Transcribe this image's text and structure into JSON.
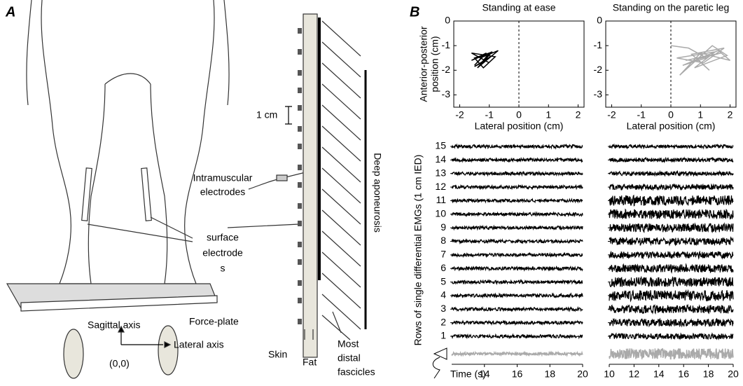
{
  "panel_a": {
    "label": "A",
    "scale": "1 cm",
    "intramuscular": [
      "Intramuscular",
      "electrodes"
    ],
    "surface": [
      "surface",
      "electrode",
      "s"
    ],
    "aponeurosis": "Deep aponeurosis",
    "force_plate": "Force-plate",
    "sagittal": "Sagittal axis",
    "lateral": "Lateral axis",
    "origin": "(0,0)",
    "skin": "Skin",
    "fat": "Fat",
    "fascicles": [
      "Most",
      "distal",
      "fascicles"
    ]
  },
  "panel_b_label": "B",
  "chart_data": [
    {
      "type": "line",
      "title": "Standing at ease",
      "xlabel": "Lateral position (cm)",
      "ylabel": [
        "Anterior-posterior",
        "position (cm)"
      ],
      "color": "#000000",
      "xlim": [
        -2.2,
        2.2
      ],
      "ylim": [
        -3.5,
        0
      ],
      "xticks": [
        -2,
        -1,
        0,
        1,
        2
      ],
      "yticks": [
        0,
        -1,
        -2,
        -3
      ],
      "x": [
        -1.2,
        -1.5,
        -1.1,
        -1.6,
        -0.9,
        -1.4,
        -0.7,
        -1.3,
        -1.0,
        -1.6,
        -0.8,
        -1.2,
        -1.5,
        -1.0,
        -1.3,
        -0.9,
        -1.5,
        -1.1
      ],
      "values": [
        -1.4,
        -1.8,
        -1.3,
        -1.6,
        -1.25,
        -1.9,
        -1.2,
        -1.5,
        -1.7,
        -1.3,
        -1.45,
        -1.9,
        -1.5,
        -1.3,
        -1.75,
        -1.4,
        -1.85,
        -1.6
      ]
    },
    {
      "type": "line",
      "title": "Standing on the paretic leg",
      "xlabel": "Lateral position (cm)",
      "color": "#aaaaaa",
      "xlim": [
        -2.2,
        2.2
      ],
      "ylim": [
        -3.5,
        0
      ],
      "xticks": [
        -2,
        -1,
        0,
        1,
        2
      ],
      "yticks": [
        0,
        -1,
        -2,
        -3
      ],
      "x": [
        0.0,
        0.6,
        1.2,
        0.4,
        1.6,
        2.0,
        1.0,
        0.3,
        1.4,
        1.9,
        0.8,
        1.5,
        0.2,
        1.1,
        1.8,
        0.7,
        1.3,
        0.9,
        1.7,
        0.5
      ],
      "values": [
        -1.0,
        -1.1,
        -1.5,
        -1.8,
        -1.2,
        -1.6,
        -1.3,
        -2.2,
        -1.0,
        -1.4,
        -1.9,
        -1.25,
        -1.5,
        -1.7,
        -1.1,
        -1.35,
        -2.0,
        -1.55,
        -1.3,
        -1.6
      ]
    },
    {
      "type": "emg",
      "ylabel": "Rows of single differential EMGs (1 cm IED)",
      "xlabel": "Time (s)",
      "color": "#000000",
      "force_color": "#aaaaaa",
      "xlim": [
        12,
        20
      ],
      "xticks": [
        14,
        16,
        18,
        20
      ],
      "yticks": [
        1,
        2,
        3,
        4,
        5,
        6,
        7,
        8,
        9,
        10,
        11,
        12,
        13,
        14,
        15
      ],
      "amplitudes": [
        0.12,
        0.12,
        0.12,
        0.13,
        0.12,
        0.13,
        0.12,
        0.12,
        0.12,
        0.12,
        0.12,
        0.12,
        0.12,
        0.12,
        0.13
      ],
      "force_amplitude": 0.1
    },
    {
      "type": "emg",
      "color": "#000000",
      "force_color": "#aaaaaa",
      "xlim": [
        10,
        20
      ],
      "xticks": [
        10,
        12,
        14,
        16,
        18,
        20
      ],
      "yticks": [
        1,
        2,
        3,
        4,
        5,
        6,
        7,
        8,
        9,
        10,
        11,
        12,
        13,
        14,
        15
      ],
      "amplitudes": [
        0.2,
        0.28,
        0.3,
        0.4,
        0.35,
        0.3,
        0.25,
        0.28,
        0.32,
        0.35,
        0.38,
        0.2,
        0.15,
        0.15,
        0.13
      ],
      "force_amplitude": 0.4
    }
  ]
}
